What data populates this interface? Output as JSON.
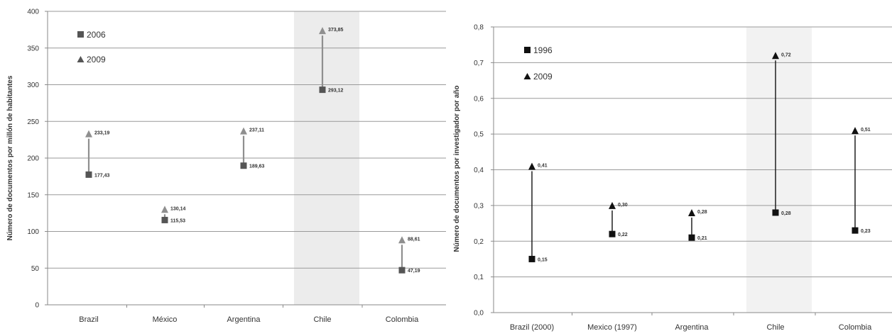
{
  "chart_data": [
    {
      "type": "dot-arrow",
      "ylabel": "Número de documentos por millón de habitantes",
      "ylim": [
        0,
        400
      ],
      "yticks": [
        0,
        50,
        100,
        150,
        200,
        250,
        300,
        350,
        400
      ],
      "ytick_labels": [
        "0",
        "50",
        "100",
        "150",
        "200",
        "250",
        "300",
        "350",
        "400"
      ],
      "categories": [
        "Brazil",
        "México",
        "Argentina",
        "Chile",
        "Colombia"
      ],
      "highlight_category": "Chile",
      "legend_position": "top-left",
      "arrow_color": "#8f8f8f",
      "highlight_color": "#ececec",
      "series": [
        {
          "name": "2006",
          "marker": "square",
          "color": "#555555",
          "values": [
            177.43,
            115.53,
            189.63,
            293.12,
            47.19
          ],
          "labels": [
            "177,43",
            "115,53",
            "189,63",
            "293,12",
            "47,19"
          ]
        },
        {
          "name": "2009",
          "marker": "triangle",
          "color": "#555555",
          "values": [
            233.19,
            130.14,
            237.11,
            373.85,
            88.61
          ],
          "labels": [
            "233,19",
            "130,14",
            "237,11",
            "373,85",
            "88,61"
          ]
        }
      ]
    },
    {
      "type": "dot-arrow",
      "ylabel": "Número de documentos por investigador por año",
      "ylim": [
        0,
        0.8
      ],
      "yticks": [
        0,
        0.1,
        0.2,
        0.3,
        0.4,
        0.5,
        0.6,
        0.7,
        0.8
      ],
      "ytick_labels": [
        "0,0",
        "0,1",
        "0,2",
        "0,3",
        "0,4",
        "0,5",
        "0,6",
        "0,7",
        "0,8"
      ],
      "categories": [
        "Brazil (2000)",
        "Mexico (1997)",
        "Argentina",
        "Chile",
        "Colombia"
      ],
      "highlight_category": "Chile",
      "legend_position": "top-left",
      "arrow_color": "#111111",
      "highlight_color": "#f2f2f2",
      "series": [
        {
          "name": "1996",
          "marker": "square",
          "color": "#111111",
          "values": [
            0.15,
            0.22,
            0.21,
            0.28,
            0.23
          ],
          "labels": [
            "0,15",
            "0,22",
            "0,21",
            "0,28",
            "0,23"
          ]
        },
        {
          "name": "2009",
          "marker": "triangle",
          "color": "#111111",
          "values": [
            0.41,
            0.3,
            0.28,
            0.72,
            0.51
          ],
          "labels": [
            "0,41",
            "0,30",
            "0,28",
            "0,72",
            "0,51"
          ]
        }
      ]
    }
  ]
}
